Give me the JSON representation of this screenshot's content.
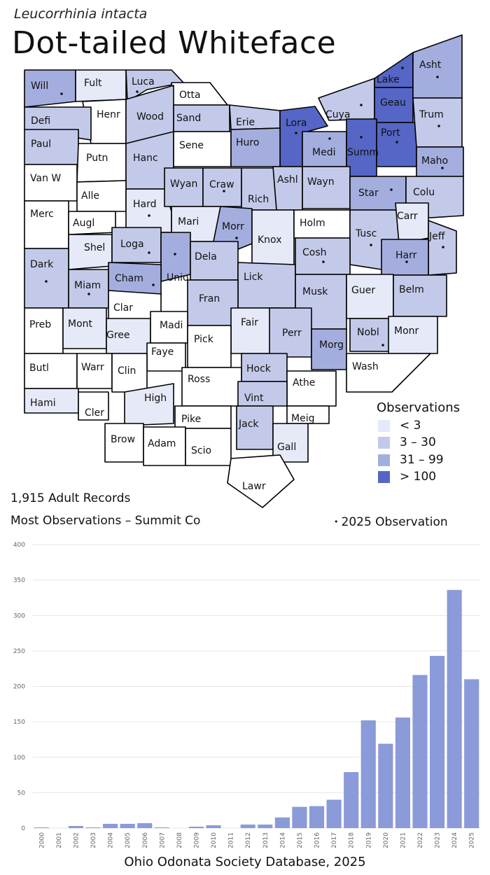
{
  "scientific_name": "Leucorrhinia intacta",
  "common_name": "Dot-tailed Whiteface",
  "legend": {
    "title": "Observations",
    "items": [
      {
        "label": "< 3",
        "color": "#e6e9f7"
      },
      {
        "label": "3 – 30",
        "color": "#c3cae9"
      },
      {
        "label": "31 – 99",
        "color": "#a4aede"
      },
      {
        "label": "> 100",
        "color": "#5566c6"
      }
    ]
  },
  "summary": {
    "records": "1,915  Adult Records",
    "most": "Most Observations – Summit Co",
    "obs_2025": "2025  Observation",
    "dot_symbol": "•"
  },
  "counties": [
    {
      "name": "Will",
      "level": 2,
      "dot": true
    },
    {
      "name": "Fult",
      "level": 0,
      "dot": false
    },
    {
      "name": "Luca",
      "level": 1,
      "dot": true
    },
    {
      "name": "Otta",
      "level": -1,
      "dot": false
    },
    {
      "name": "Henr",
      "level": -1,
      "dot": false
    },
    {
      "name": "Wood",
      "level": 1,
      "dot": false
    },
    {
      "name": "Sand",
      "level": 1,
      "dot": false
    },
    {
      "name": "Erie",
      "level": 1,
      "dot": false
    },
    {
      "name": "Lora",
      "level": 3,
      "dot": true
    },
    {
      "name": "Cuya",
      "level": 1,
      "dot": true
    },
    {
      "name": "Lake",
      "level": 3,
      "dot": true
    },
    {
      "name": "Geau",
      "level": 3,
      "dot": false
    },
    {
      "name": "Asht",
      "level": 2,
      "dot": true
    },
    {
      "name": "Defi",
      "level": 1,
      "dot": false
    },
    {
      "name": "Paul",
      "level": 1,
      "dot": false
    },
    {
      "name": "Putn",
      "level": -1,
      "dot": false
    },
    {
      "name": "Hanc",
      "level": 1,
      "dot": false
    },
    {
      "name": "Sene",
      "level": -1,
      "dot": false
    },
    {
      "name": "Huro",
      "level": 2,
      "dot": false
    },
    {
      "name": "Medi",
      "level": 2,
      "dot": true
    },
    {
      "name": "Summ",
      "level": 3,
      "dot": true
    },
    {
      "name": "Port",
      "level": 3,
      "dot": true
    },
    {
      "name": "Trum",
      "level": 1,
      "dot": true
    },
    {
      "name": "Van W",
      "level": -1,
      "dot": false
    },
    {
      "name": "Alle",
      "level": -1,
      "dot": false
    },
    {
      "name": "Hard",
      "level": 0,
      "dot": true
    },
    {
      "name": "Wyan",
      "level": 1,
      "dot": false
    },
    {
      "name": "Craw",
      "level": 1,
      "dot": true
    },
    {
      "name": "Rich",
      "level": 1,
      "dot": false
    },
    {
      "name": "Ashl",
      "level": 1,
      "dot": false
    },
    {
      "name": "Wayn",
      "level": 1,
      "dot": false
    },
    {
      "name": "Star",
      "level": 2,
      "dot": true
    },
    {
      "name": "Maho",
      "level": 2,
      "dot": true
    },
    {
      "name": "Colu",
      "level": 1,
      "dot": false
    },
    {
      "name": "Merc",
      "level": -1,
      "dot": false
    },
    {
      "name": "Augl",
      "level": -1,
      "dot": false
    },
    {
      "name": "Mari",
      "level": 0,
      "dot": false
    },
    {
      "name": "Morr",
      "level": 2,
      "dot": true
    },
    {
      "name": "Knox",
      "level": 0,
      "dot": false
    },
    {
      "name": "Holm",
      "level": -1,
      "dot": false
    },
    {
      "name": "Tusc",
      "level": 1,
      "dot": true
    },
    {
      "name": "Carr",
      "level": 0,
      "dot": false
    },
    {
      "name": "Jeff",
      "level": 1,
      "dot": true
    },
    {
      "name": "Shel",
      "level": 0,
      "dot": false
    },
    {
      "name": "Loga",
      "level": 1,
      "dot": true
    },
    {
      "name": "Unio",
      "level": 2,
      "dot": true
    },
    {
      "name": "Dela",
      "level": 1,
      "dot": false
    },
    {
      "name": "Lick",
      "level": 1,
      "dot": false
    },
    {
      "name": "Cosh",
      "level": 1,
      "dot": true
    },
    {
      "name": "Harr",
      "level": 2,
      "dot": true
    },
    {
      "name": "Dark",
      "level": 1,
      "dot": true
    },
    {
      "name": "Miam",
      "level": 1,
      "dot": true
    },
    {
      "name": "Cham",
      "level": 2,
      "dot": true
    },
    {
      "name": "Clar",
      "level": -1,
      "dot": false
    },
    {
      "name": "Fran",
      "level": 1,
      "dot": false
    },
    {
      "name": "Musk",
      "level": 1,
      "dot": false
    },
    {
      "name": "Guer",
      "level": 0,
      "dot": false
    },
    {
      "name": "Belm",
      "level": 1,
      "dot": false
    },
    {
      "name": "Preb",
      "level": -1,
      "dot": false
    },
    {
      "name": "Mont",
      "level": 0,
      "dot": false
    },
    {
      "name": "Gree",
      "level": 0,
      "dot": false
    },
    {
      "name": "Madi",
      "level": -1,
      "dot": false
    },
    {
      "name": "Fair",
      "level": 0,
      "dot": false
    },
    {
      "name": "Perr",
      "level": 1,
      "dot": false
    },
    {
      "name": "Nobl",
      "level": 1,
      "dot": true
    },
    {
      "name": "Monr",
      "level": 0,
      "dot": false
    },
    {
      "name": "Faye",
      "level": -1,
      "dot": false
    },
    {
      "name": "Pick",
      "level": -1,
      "dot": false
    },
    {
      "name": "Morg",
      "level": 2,
      "dot": false
    },
    {
      "name": "Butl",
      "level": -1,
      "dot": false
    },
    {
      "name": "Warr",
      "level": -1,
      "dot": false
    },
    {
      "name": "Clin",
      "level": -1,
      "dot": false
    },
    {
      "name": "Hock",
      "level": 1,
      "dot": false
    },
    {
      "name": "Wash",
      "level": -1,
      "dot": false
    },
    {
      "name": "Ross",
      "level": -1,
      "dot": false
    },
    {
      "name": "Athe",
      "level": -1,
      "dot": false
    },
    {
      "name": "Hami",
      "level": 0,
      "dot": false
    },
    {
      "name": "Cler",
      "level": -1,
      "dot": false
    },
    {
      "name": "High",
      "level": 0,
      "dot": false
    },
    {
      "name": "Vint",
      "level": 1,
      "dot": false
    },
    {
      "name": "Pike",
      "level": -1,
      "dot": false
    },
    {
      "name": "Meig",
      "level": -1,
      "dot": false
    },
    {
      "name": "Jack",
      "level": 1,
      "dot": false
    },
    {
      "name": "Brow",
      "level": -1,
      "dot": false
    },
    {
      "name": "Adam",
      "level": -1,
      "dot": false
    },
    {
      "name": "Scio",
      "level": -1,
      "dot": false
    },
    {
      "name": "Gall",
      "level": 0,
      "dot": false
    },
    {
      "name": "Lawr",
      "level": -1,
      "dot": false
    }
  ],
  "chart_data": {
    "type": "bar",
    "categories": [
      "2000",
      "2001",
      "2002",
      "2003",
      "2004",
      "2005",
      "2006",
      "2007",
      "2008",
      "2009",
      "2010",
      "2011",
      "2012",
      "2013",
      "2014",
      "2015",
      "2016",
      "2017",
      "2018",
      "2019",
      "2020",
      "2021",
      "2022",
      "2023",
      "2024",
      "2025"
    ],
    "values": [
      1,
      0,
      3,
      1,
      6,
      6,
      7,
      1,
      0,
      2,
      4,
      0,
      5,
      5,
      15,
      30,
      31,
      40,
      79,
      152,
      119,
      156,
      216,
      243,
      336,
      210
    ],
    "yticks": [
      0,
      50,
      100,
      150,
      200,
      250,
      300,
      350,
      400
    ],
    "ylim": [
      0,
      400
    ],
    "bar_color": "#8b9ad8",
    "grid": true,
    "title": "",
    "xlabel": "",
    "ylabel": ""
  },
  "source": "Ohio Odonata Society Database, 2025"
}
